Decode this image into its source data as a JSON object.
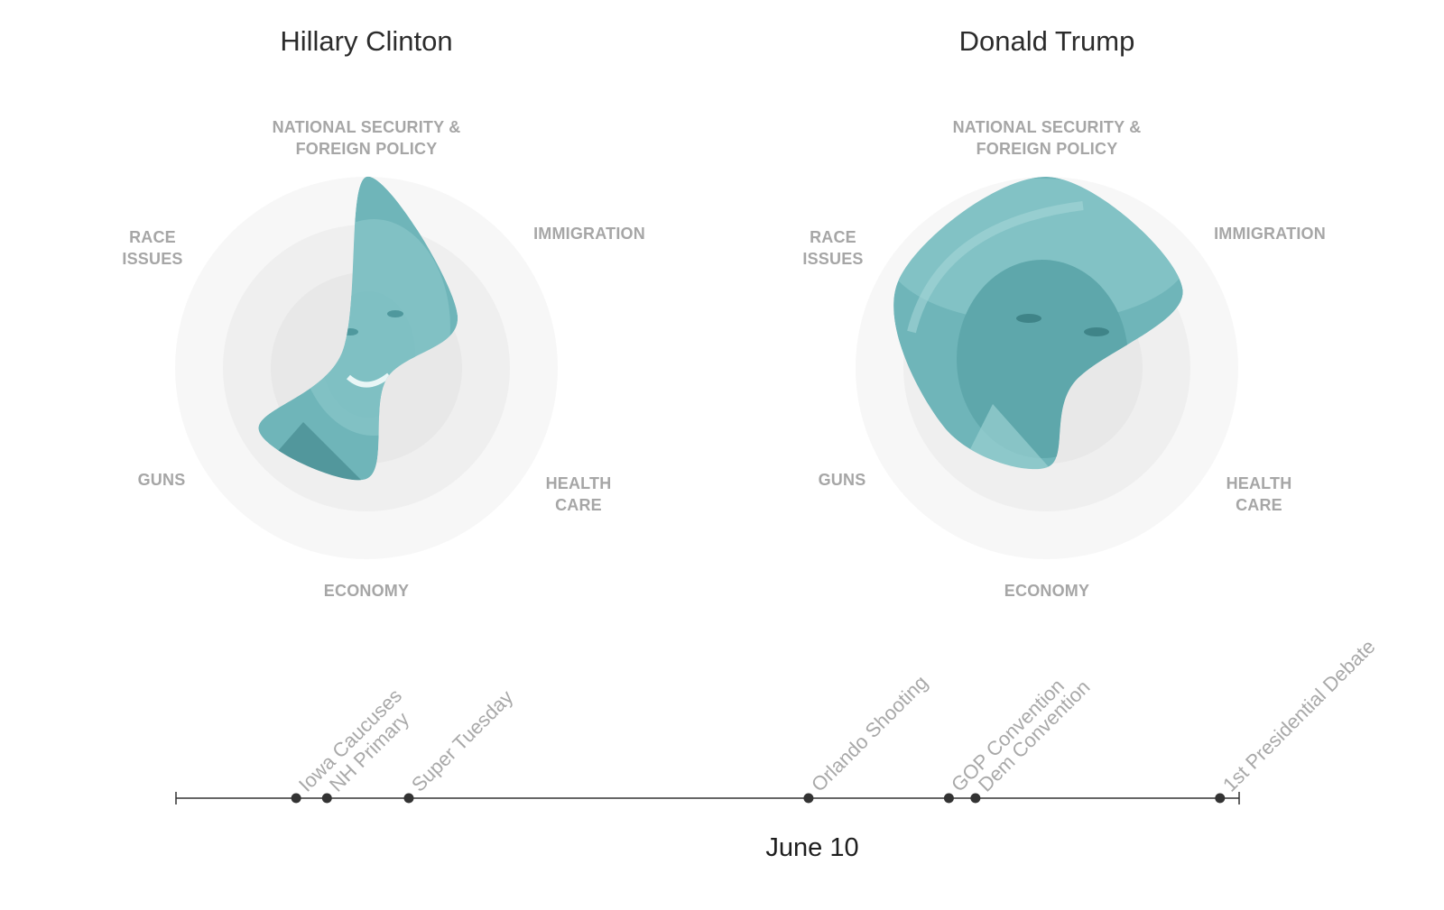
{
  "candidates": [
    {
      "name": "Hillary Clinton"
    },
    {
      "name": "Donald Trump"
    }
  ],
  "categories": {
    "national_security": "NATIONAL SECURITY &\nFOREIGN POLICY",
    "immigration": "IMMIGRATION",
    "health_care": "HEALTH\nCARE",
    "economy": "ECONOMY",
    "guns": "GUNS",
    "race_issues": "RACE\nISSUES"
  },
  "timeline": {
    "current_date": "June 10",
    "events": [
      {
        "label": "Iowa Caucuses",
        "position": 0.113
      },
      {
        "label": "NH Primary",
        "position": 0.142
      },
      {
        "label": "Super Tuesday",
        "position": 0.219
      },
      {
        "label": "Orlando Shooting",
        "position": 0.595
      },
      {
        "label": "GOP Convention",
        "position": 0.727
      },
      {
        "label": "Dem Convention",
        "position": 0.752
      },
      {
        "label": "1st Presidential Debate",
        "position": 0.982
      }
    ]
  },
  "colors": {
    "shape_fill": "#6fb5b9",
    "ring_outer": "#f7f7f7",
    "ring_middle": "#efefef",
    "ring_inner": "#e8e8e8",
    "label_gray": "#a6a6a6",
    "axis_line": "#333333"
  },
  "chart_data": [
    {
      "type": "radar",
      "title": "Hillary Clinton",
      "axes": [
        "NATIONAL SECURITY & FOREIGN POLICY",
        "IMMIGRATION",
        "HEALTH CARE",
        "ECONOMY",
        "GUNS",
        "RACE ISSUES"
      ],
      "values": [
        1.0,
        0.55,
        0.12,
        0.58,
        0.65,
        0.15
      ],
      "max": 1.0,
      "fill": "face-portrait",
      "fill_icon": "clinton-portrait"
    },
    {
      "type": "radar",
      "title": "Donald Trump",
      "axes": [
        "NATIONAL SECURITY & FOREIGN POLICY",
        "IMMIGRATION",
        "HEALTH CARE",
        "ECONOMY",
        "GUNS",
        "RACE ISSUES"
      ],
      "values": [
        1.0,
        0.82,
        0.16,
        0.52,
        0.62,
        0.9
      ],
      "max": 1.0,
      "fill": "face-portrait",
      "fill_icon": "trump-portrait"
    }
  ]
}
